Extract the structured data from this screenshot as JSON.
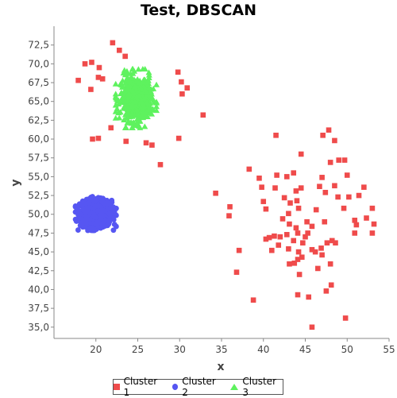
{
  "chart_data": {
    "type": "scatter",
    "title": "Test, DBSCAN",
    "xlabel": "x",
    "ylabel": "y",
    "xlim": [
      15,
      55
    ],
    "ylim": [
      33.5,
      75.0
    ],
    "x_ticks": [
      "20",
      "25",
      "30",
      "35",
      "40",
      "45",
      "50",
      "55"
    ],
    "y_ticks": [
      "35,0",
      "37,5",
      "40,0",
      "42,5",
      "45,0",
      "47,5",
      "50,0",
      "52,5",
      "55,0",
      "57,5",
      "60,0",
      "62,5",
      "65,0",
      "67,5",
      "70,0",
      "72,5"
    ],
    "grid": false,
    "legend_position": "bottom",
    "series": [
      {
        "name": "Cluster 1",
        "marker": "square",
        "color": "#ef4b4b",
        "points": [
          [
            22.0,
            72.8
          ],
          [
            22.8,
            71.8
          ],
          [
            23.5,
            71.0
          ],
          [
            18.7,
            70.0
          ],
          [
            19.5,
            70.2
          ],
          [
            20.4,
            69.5
          ],
          [
            17.9,
            67.8
          ],
          [
            20.3,
            68.2
          ],
          [
            20.8,
            68.0
          ],
          [
            19.4,
            66.6
          ],
          [
            29.8,
            68.9
          ],
          [
            30.2,
            67.6
          ],
          [
            30.9,
            66.8
          ],
          [
            30.3,
            66.0
          ],
          [
            32.8,
            63.2
          ],
          [
            21.8,
            61.5
          ],
          [
            19.6,
            60.0
          ],
          [
            20.3,
            60.1
          ],
          [
            23.6,
            59.7
          ],
          [
            26.0,
            59.5
          ],
          [
            26.7,
            59.2
          ],
          [
            29.9,
            60.1
          ],
          [
            27.7,
            56.6
          ],
          [
            34.3,
            52.8
          ],
          [
            36.0,
            51.0
          ],
          [
            35.9,
            49.8
          ],
          [
            37.1,
            45.2
          ],
          [
            36.8,
            42.3
          ],
          [
            38.3,
            56.0
          ],
          [
            39.5,
            54.8
          ],
          [
            39.8,
            53.6
          ],
          [
            40.0,
            51.7
          ],
          [
            40.3,
            50.7
          ],
          [
            41.6,
            55.2
          ],
          [
            41.4,
            53.5
          ],
          [
            41.5,
            60.5
          ],
          [
            42.8,
            55.0
          ],
          [
            42.5,
            52.2
          ],
          [
            43.2,
            51.5
          ],
          [
            43.6,
            55.5
          ],
          [
            43.9,
            53.1
          ],
          [
            44.0,
            51.8
          ],
          [
            44.5,
            53.5
          ],
          [
            43.0,
            50.1
          ],
          [
            42.3,
            49.4
          ],
          [
            43.1,
            48.7
          ],
          [
            43.9,
            48.2
          ],
          [
            44.1,
            47.5
          ],
          [
            44.5,
            58.0
          ],
          [
            44.2,
            50.8
          ],
          [
            45.2,
            49.0
          ],
          [
            45.8,
            48.4
          ],
          [
            46.3,
            50.6
          ],
          [
            46.7,
            53.7
          ],
          [
            47.0,
            54.9
          ],
          [
            47.4,
            52.9
          ],
          [
            48.0,
            56.9
          ],
          [
            47.8,
            61.2
          ],
          [
            47.1,
            60.5
          ],
          [
            48.5,
            59.8
          ],
          [
            49.0,
            57.2
          ],
          [
            49.7,
            57.2
          ],
          [
            48.5,
            53.8
          ],
          [
            48.9,
            52.3
          ],
          [
            50.0,
            55.2
          ],
          [
            50.2,
            52.3
          ],
          [
            49.6,
            50.8
          ],
          [
            50.9,
            49.2
          ],
          [
            51.1,
            48.6
          ],
          [
            51.4,
            52.5
          ],
          [
            52.0,
            53.6
          ],
          [
            52.3,
            49.5
          ],
          [
            53.0,
            50.8
          ],
          [
            53.2,
            48.7
          ],
          [
            53.0,
            47.5
          ],
          [
            50.9,
            47.5
          ],
          [
            47.3,
            49.0
          ],
          [
            47.6,
            46.2
          ],
          [
            46.9,
            45.5
          ],
          [
            46.2,
            45.0
          ],
          [
            45.8,
            45.3
          ],
          [
            45.3,
            47.5
          ],
          [
            45.0,
            47.0
          ],
          [
            44.7,
            46.2
          ],
          [
            44.2,
            45.0
          ],
          [
            43.6,
            46.5
          ],
          [
            42.8,
            47.3
          ],
          [
            42.0,
            47.0
          ],
          [
            41.8,
            45.9
          ],
          [
            41.0,
            45.2
          ],
          [
            40.3,
            46.7
          ],
          [
            40.7,
            46.9
          ],
          [
            41.3,
            47.1
          ],
          [
            43.0,
            45.4
          ],
          [
            43.1,
            43.4
          ],
          [
            43.7,
            43.5
          ],
          [
            44.1,
            44.0
          ],
          [
            44.6,
            44.3
          ],
          [
            44.3,
            42.0
          ],
          [
            46.5,
            42.8
          ],
          [
            47.0,
            44.6
          ],
          [
            48.0,
            43.4
          ],
          [
            48.2,
            46.5
          ],
          [
            48.6,
            46.2
          ],
          [
            48.1,
            40.6
          ],
          [
            47.5,
            39.8
          ],
          [
            45.4,
            39.0
          ],
          [
            44.1,
            39.3
          ],
          [
            38.8,
            38.6
          ],
          [
            49.8,
            36.2
          ],
          [
            45.8,
            35.0
          ]
        ]
      },
      {
        "name": "Cluster 2",
        "marker": "circle",
        "color": "#5656f2",
        "center": [
          20.0,
          50.1
        ],
        "spread": [
          1.7,
          1.15
        ],
        "count": 900
      },
      {
        "name": "Cluster 3",
        "marker": "triangle",
        "color": "#5ef25e",
        "center": [
          24.8,
          65.4
        ],
        "spread": [
          1.7,
          2.0
        ],
        "count": 520
      }
    ]
  }
}
